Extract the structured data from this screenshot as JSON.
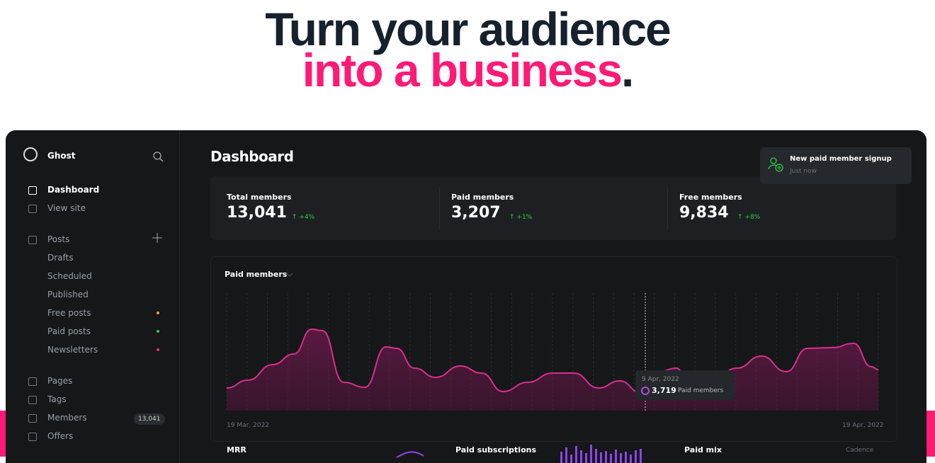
{
  "headline": {
    "line1": "Turn your audience",
    "line2": "into a business",
    "punctuation": "."
  },
  "sidebar": {
    "brand": "Ghost",
    "items": [
      "Dashboard",
      "View site"
    ],
    "posts": {
      "label": "Posts",
      "children": [
        "Drafts",
        "Scheduled",
        "Published",
        "Free posts",
        "Paid posts",
        "Newsletters"
      ]
    },
    "more": [
      "Pages",
      "Tags",
      "Members",
      "Offers"
    ],
    "members_count": "13,041"
  },
  "main": {
    "title": "Dashboard",
    "stats": [
      {
        "label": "Total members",
        "value": "13,041",
        "change": "+4%"
      },
      {
        "label": "Paid members",
        "value": "3,207",
        "change": "+1%"
      },
      {
        "label": "Free members",
        "value": "9,834",
        "change": "+8%"
      }
    ],
    "chart": {
      "title": "Paid members",
      "start": "19 Mar, 2022",
      "end": "19 Apr, 2022",
      "tooltip": {
        "date": "9 Apr, 2022",
        "value": "3,719",
        "label": "Paid members"
      }
    },
    "bottom": [
      "MRR",
      "Paid subscriptions",
      "Paid mix"
    ],
    "cadence": "Cadence"
  },
  "notification": {
    "title": "New paid member signup",
    "time": "Just now"
  }
}
